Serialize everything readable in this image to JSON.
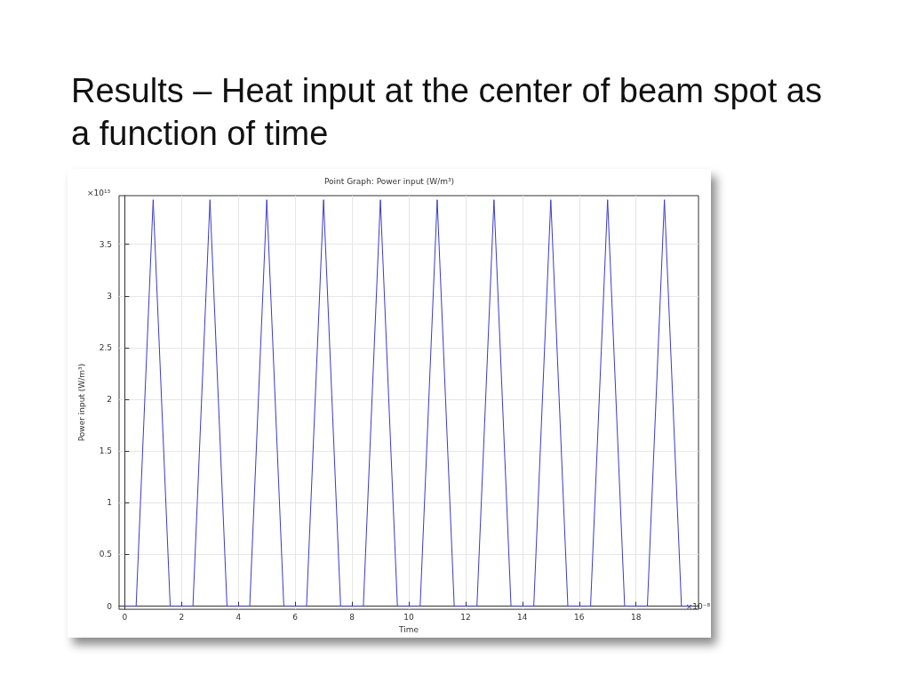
{
  "chart_data": {
    "type": "line",
    "title": "Results – Heat input at the center of beam spot as a function of time",
    "subtitle": "Point Graph: Power input (W/m³)",
    "xlabel": "Time",
    "ylabel": "Power input (W/m³)",
    "annotations": [
      "×10¹³",
      "×10⁻⁸"
    ],
    "series": [
      {
        "color": "#3a3acc",
        "x": [
          0,
          0.4,
          1,
          1.6,
          2.4,
          3,
          3.6,
          4.4,
          5,
          5.6,
          6.4,
          7,
          7.6,
          8.4,
          9,
          9.6,
          10.4,
          11,
          11.6,
          12.4,
          13,
          13.6,
          14.4,
          15,
          15.6,
          16.4,
          17,
          17.6,
          18.4,
          19,
          19.6,
          20
        ],
        "values": [
          0,
          0,
          3.93,
          0,
          0,
          3.93,
          0,
          0,
          3.93,
          0,
          0,
          3.93,
          0,
          0,
          3.93,
          0,
          0,
          3.93,
          0,
          0,
          3.93,
          0,
          0,
          3.93,
          0,
          0,
          3.93,
          0,
          0,
          3.93,
          0,
          0
        ]
      }
    ],
    "xlim": [
      -0.2,
      20.2
    ],
    "xticks": [
      0,
      2,
      4,
      6,
      8,
      10,
      12,
      14,
      16,
      18
    ],
    "ylim": [
      -0.03,
      3.97
    ],
    "yticks": [
      0,
      0.5,
      1,
      1.5,
      2,
      2.5,
      3,
      3.5
    ],
    "grid": true,
    "marker": "none",
    "line_style": "solid"
  }
}
